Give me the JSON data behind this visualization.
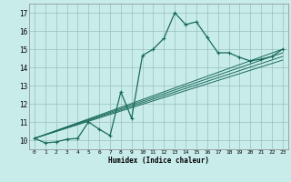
{
  "xlabel": "Humidex (Indice chaleur)",
  "ylabel": "",
  "bg_color": "#c8ecea",
  "grid_color": "#9bbfbd",
  "line_color": "#1a6b5a",
  "xlim": [
    -0.5,
    23.5
  ],
  "ylim": [
    9.5,
    17.5
  ],
  "xticks": [
    0,
    1,
    2,
    3,
    4,
    5,
    6,
    7,
    8,
    9,
    10,
    11,
    12,
    13,
    14,
    15,
    16,
    17,
    18,
    19,
    20,
    21,
    22,
    23
  ],
  "yticks": [
    10,
    11,
    12,
    13,
    14,
    15,
    16,
    17
  ],
  "main_line_x": [
    0,
    1,
    2,
    3,
    4,
    5,
    6,
    7,
    8,
    9,
    10,
    11,
    12,
    13,
    14,
    15,
    16,
    17,
    18,
    19,
    20,
    21,
    22,
    23
  ],
  "main_line_y": [
    10.1,
    9.85,
    9.9,
    10.05,
    10.1,
    11.0,
    10.6,
    10.25,
    12.65,
    11.2,
    14.65,
    15.0,
    15.6,
    17.0,
    16.35,
    16.5,
    15.65,
    14.8,
    14.8,
    14.55,
    14.35,
    14.45,
    14.6,
    15.0
  ],
  "linear_lines": [
    {
      "x": [
        0,
        23
      ],
      "y": [
        10.1,
        14.4
      ]
    },
    {
      "x": [
        0,
        23
      ],
      "y": [
        10.1,
        14.6
      ]
    },
    {
      "x": [
        0,
        23
      ],
      "y": [
        10.1,
        14.8
      ]
    },
    {
      "x": [
        0,
        23
      ],
      "y": [
        10.1,
        15.0
      ]
    }
  ]
}
